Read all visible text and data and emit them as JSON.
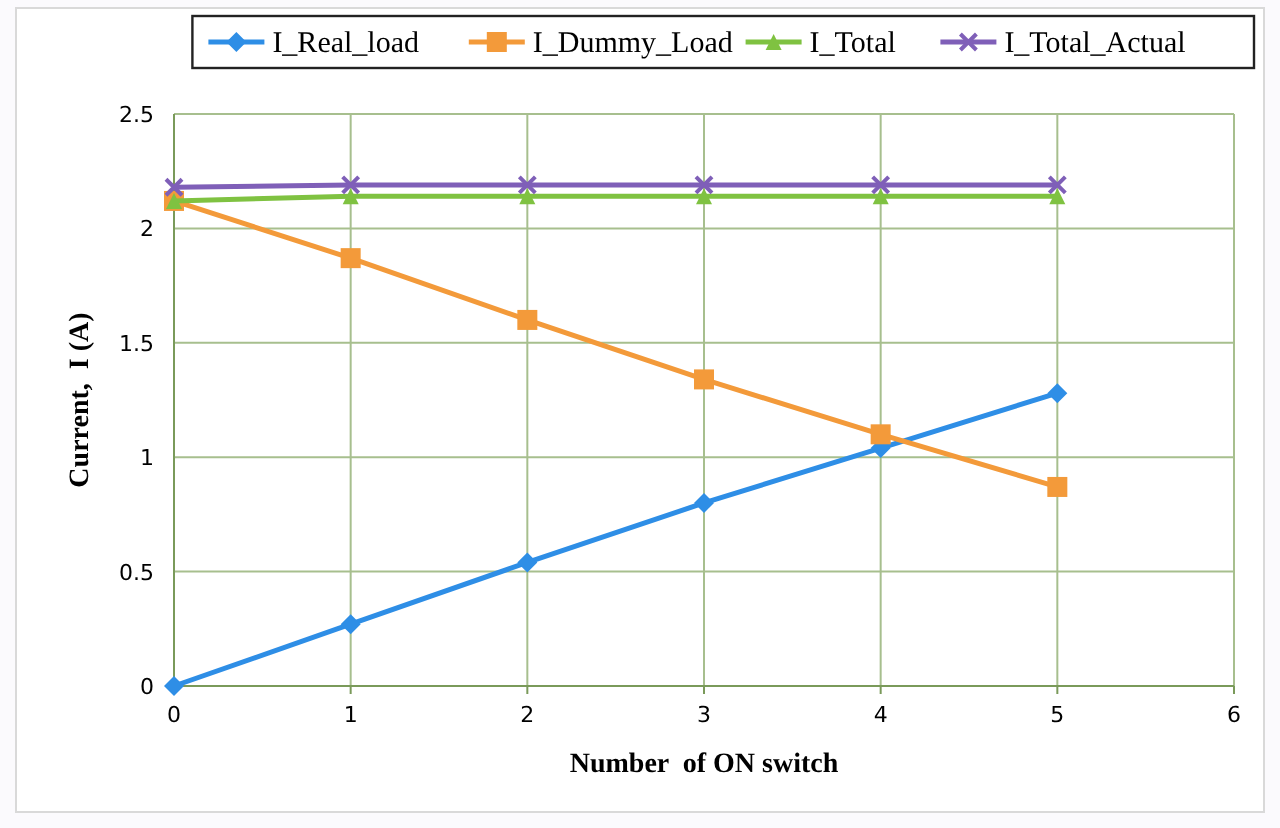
{
  "chart_data": {
    "type": "line",
    "xlabel": "Number  of ON switch",
    "ylabel": "Current,  I (A)",
    "x": [
      0,
      1,
      2,
      3,
      4,
      5
    ],
    "series": [
      {
        "name": "I_Real_load",
        "color": "#2e8ee6",
        "values": [
          0,
          0.27,
          0.54,
          0.8,
          1.04,
          1.28
        ],
        "marker": "diamond"
      },
      {
        "name": "I_Dummy_Load",
        "color": "#f39a3a",
        "values": [
          2.12,
          1.87,
          1.6,
          1.34,
          1.1,
          0.87
        ],
        "marker": "square"
      },
      {
        "name": "I_Total",
        "color": "#7fc241",
        "values": [
          2.12,
          2.14,
          2.14,
          2.14,
          2.14,
          2.14
        ],
        "marker": "triangle"
      },
      {
        "name": "I_Total_Actual",
        "color": "#7f5fb8",
        "values": [
          2.18,
          2.19,
          2.19,
          2.19,
          2.19,
          2.19
        ],
        "marker": "cross"
      }
    ],
    "xlim": [
      0,
      6
    ],
    "xticks": [
      0,
      1,
      2,
      3,
      4,
      5,
      6
    ],
    "ylim": [
      0,
      2.5
    ],
    "yticks": [
      {
        "value": 0,
        "label": "0"
      },
      {
        "value": 0.5,
        "label": "0.5"
      },
      {
        "value": 1,
        "label": "1"
      },
      {
        "value": 1.5,
        "label": "1.5"
      },
      {
        "value": 2,
        "label": "2"
      },
      {
        "value": 2.5,
        "label": "2.5"
      }
    ],
    "grid": true,
    "legend": "top",
    "line_style": "solid"
  }
}
